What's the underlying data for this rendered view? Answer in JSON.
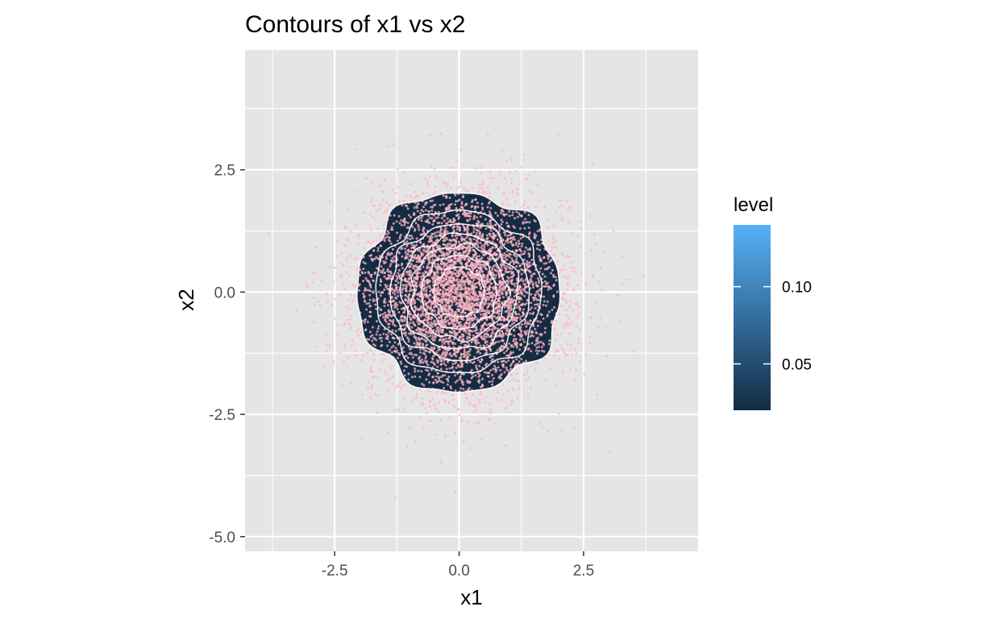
{
  "chart_data": {
    "type": "contour",
    "title": "Contours of x1 vs x2",
    "xlabel": "x1",
    "ylabel": "x2",
    "xlim": [
      -4.3,
      4.8
    ],
    "ylim": [
      -5.3,
      4.95
    ],
    "x_ticks": [
      {
        "value": -2.5,
        "label": "-2.5"
      },
      {
        "value": 0,
        "label": "0.0"
      },
      {
        "value": 2.5,
        "label": "2.5"
      }
    ],
    "y_ticks": [
      {
        "value": 2.5,
        "label": "2.5"
      },
      {
        "value": 0,
        "label": "0.0"
      },
      {
        "value": -2.5,
        "label": "-2.5"
      },
      {
        "value": -5,
        "label": "-5.0"
      }
    ],
    "grid": true,
    "points": {
      "n": 5000,
      "distribution": "standard bivariate normal",
      "mean": [
        0,
        0
      ],
      "sd": [
        1,
        1
      ],
      "color": "#ffb6c1"
    },
    "contour_levels": [
      0.02,
      0.04,
      0.06,
      0.08,
      0.1,
      0.12,
      0.14
    ],
    "legend": {
      "title": "level",
      "position": "right",
      "range": [
        0.02,
        0.14
      ],
      "ticks": [
        {
          "value": 0.05,
          "label": "0.05"
        },
        {
          "value": 0.1,
          "label": "0.10"
        }
      ],
      "low_color": "#132B43",
      "high_color": "#56B1F7"
    },
    "colors": {
      "panel": "#e5e5e5",
      "grid": "#ffffff",
      "point": "#ffb6c1",
      "contour_line": "#ffffff"
    }
  }
}
